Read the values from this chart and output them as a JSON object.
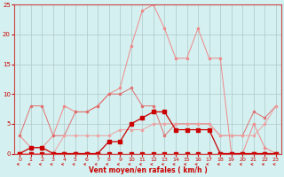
{
  "hours": [
    0,
    1,
    2,
    3,
    4,
    5,
    6,
    7,
    8,
    9,
    10,
    11,
    12,
    13,
    14,
    15,
    16,
    17,
    18,
    19,
    20,
    21,
    22,
    23
  ],
  "line_rafale": [
    3,
    1,
    1,
    3,
    8,
    7,
    7,
    8,
    10,
    11,
    18,
    24,
    25,
    21,
    16,
    16,
    21,
    16,
    16,
    0,
    0,
    5,
    1,
    0
  ],
  "line_vent_moy": [
    3,
    8,
    8,
    3,
    3,
    7,
    7,
    8,
    10,
    10,
    11,
    8,
    8,
    3,
    5,
    5,
    5,
    5,
    3,
    3,
    3,
    7,
    6,
    8
  ],
  "line_flat": [
    0,
    0,
    0,
    0,
    3,
    3,
    3,
    3,
    3,
    4,
    4,
    4,
    5,
    5,
    5,
    5,
    5,
    5,
    3,
    3,
    3,
    3,
    5,
    8
  ],
  "line_dark1": [
    0,
    1,
    1,
    0,
    0,
    0,
    0,
    0,
    2,
    2,
    5,
    6,
    7,
    7,
    4,
    4,
    4,
    4,
    0,
    0,
    0,
    0,
    0,
    0
  ],
  "line_dark2": [
    0,
    0,
    0,
    0,
    0,
    0,
    0,
    0,
    0,
    0,
    0,
    0,
    0,
    0,
    0,
    0,
    0,
    0,
    0,
    0,
    0,
    0,
    0,
    0
  ],
  "xlim": [
    -0.5,
    23.5
  ],
  "ylim": [
    0,
    25
  ],
  "yticks": [
    0,
    5,
    10,
    15,
    20,
    25
  ],
  "xticks": [
    0,
    1,
    2,
    3,
    4,
    5,
    6,
    7,
    8,
    9,
    10,
    11,
    12,
    13,
    14,
    15,
    16,
    17,
    18,
    19,
    20,
    21,
    22,
    23
  ],
  "xlabel": "Vent moyen/en rafales ( km/h )",
  "bg_color": "#d4f0f0",
  "grid_color": "#b0c8c8",
  "color_light_pink": "#f08080",
  "color_med_pink": "#e06060",
  "color_dark_red": "#cc0000",
  "color_arrow": "#cc0000"
}
